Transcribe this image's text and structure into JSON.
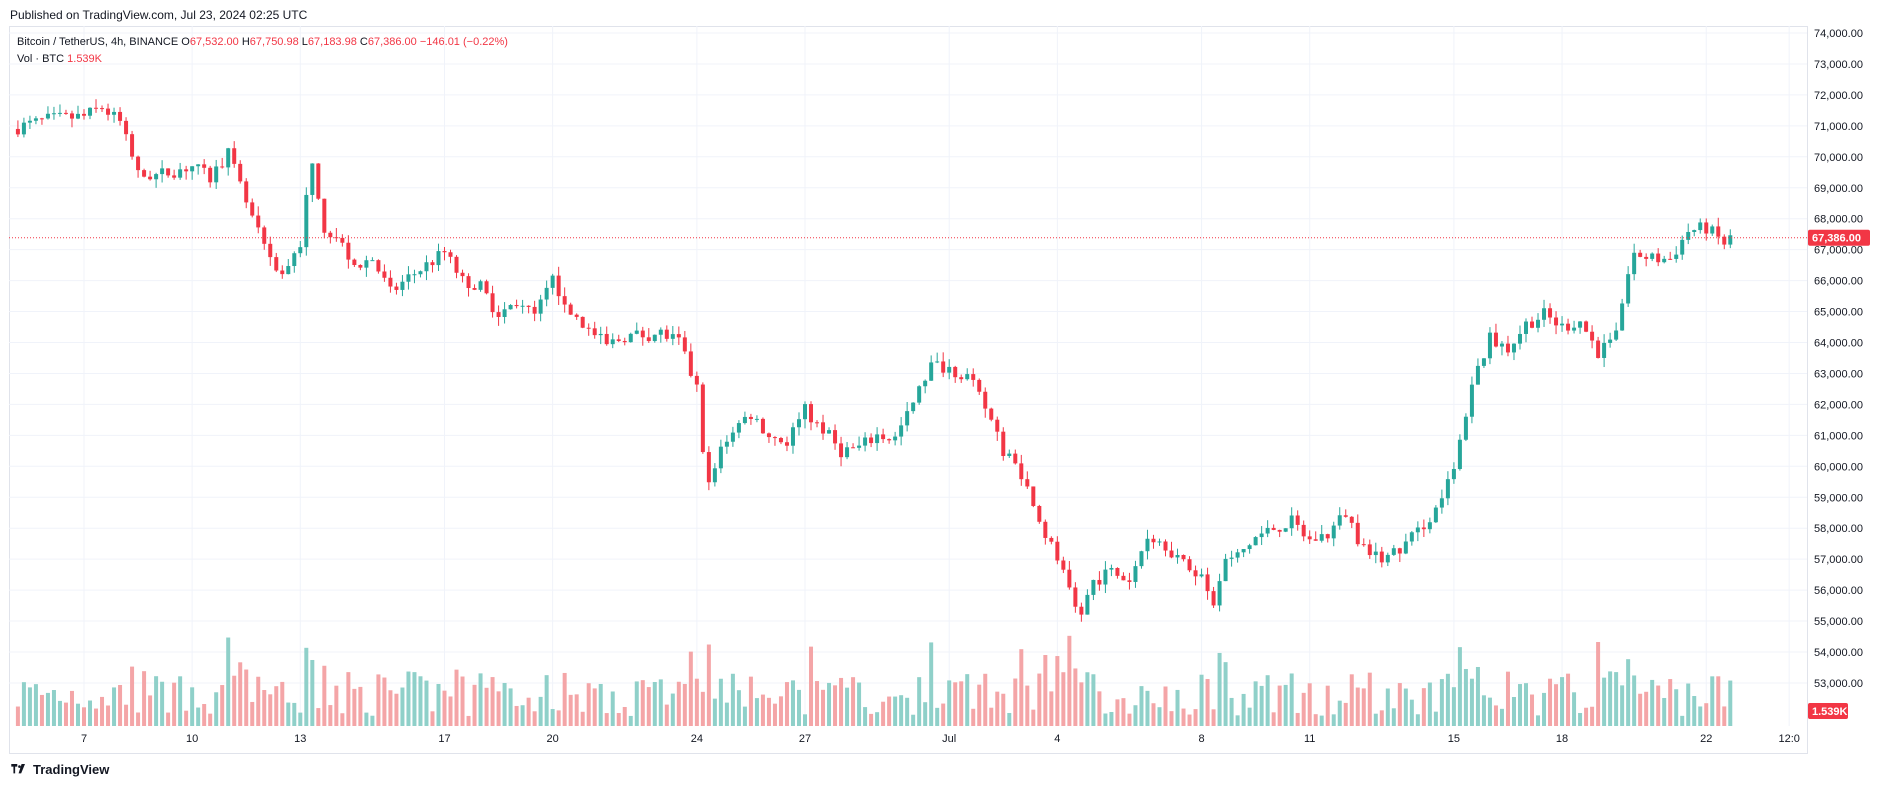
{
  "header": {
    "published": "Published on TradingView.com, Jul 23, 2024 02:25 UTC"
  },
  "legend": {
    "symbol": "Bitcoin / TetherUS, 4h, BINANCE",
    "o_label": "O",
    "o_value": "67,532.00",
    "h_label": "H",
    "h_value": "67,750.98",
    "l_label": "L",
    "l_value": "67,183.98",
    "c_label": "C",
    "c_value": "67,386.00",
    "change": "−146.01 (−0.22%)",
    "vol_label": "Vol · BTC",
    "vol_value": "1.539K"
  },
  "footer": {
    "brand": "TradingView"
  },
  "colors": {
    "up": "#26a69a",
    "down": "#f23645",
    "vol_up": "#8fd0c9",
    "vol_down": "#f4a5a7",
    "grid": "#f0f3fa",
    "text": "#131722"
  },
  "chart_data": {
    "type": "candlestick",
    "title": "Bitcoin / TetherUS, 4h, BINANCE",
    "ylim": [
      52000,
      74000
    ],
    "y_ticks": [
      "74,000.00",
      "73,000.00",
      "72,000.00",
      "71,000.00",
      "70,000.00",
      "69,000.00",
      "68,000.00",
      "67,000.00",
      "66,000.00",
      "65,000.00",
      "64,000.00",
      "63,000.00",
      "62,000.00",
      "61,000.00",
      "60,000.00",
      "59,000.00",
      "58,000.00",
      "57,000.00",
      "56,000.00",
      "55,000.00",
      "54,000.00",
      "53,000.00"
    ],
    "y_tick_values": [
      74000,
      73000,
      72000,
      71000,
      70000,
      69000,
      68000,
      67000,
      66000,
      65000,
      64000,
      63000,
      62000,
      61000,
      60000,
      59000,
      58000,
      57000,
      56000,
      55000,
      54000,
      53000
    ],
    "x_ticks": [
      {
        "label": "7",
        "day": 0
      },
      {
        "label": "10",
        "day": 3
      },
      {
        "label": "13",
        "day": 6
      },
      {
        "label": "17",
        "day": 10
      },
      {
        "label": "20",
        "day": 13
      },
      {
        "label": "24",
        "day": 17
      },
      {
        "label": "27",
        "day": 20
      },
      {
        "label": "Jul",
        "day": 24
      },
      {
        "label": "4",
        "day": 27
      },
      {
        "label": "8",
        "day": 31
      },
      {
        "label": "11",
        "day": 34
      },
      {
        "label": "15",
        "day": 38
      },
      {
        "label": "18",
        "day": 41
      },
      {
        "label": "22",
        "day": 45
      },
      {
        "label": "12:0",
        "day": 47.3
      }
    ],
    "x_start": "Jun 7",
    "x_end": "Jul 23",
    "last_price": "67,386.00",
    "last_price_value": 67386,
    "last_volume": "1.539K",
    "close_anchors": [
      [
        -2,
        70900
      ],
      [
        -1,
        71200
      ],
      [
        0,
        71300
      ],
      [
        0.5,
        71600
      ],
      [
        1,
        71100
      ],
      [
        1.5,
        69400
      ],
      [
        2,
        69400
      ],
      [
        3,
        69700
      ],
      [
        3.5,
        69300
      ],
      [
        4,
        70100
      ],
      [
        4.5,
        68500
      ],
      [
        5,
        67000
      ],
      [
        5.5,
        66200
      ],
      [
        6,
        67200
      ],
      [
        6.3,
        69800
      ],
      [
        6.6,
        67800
      ],
      [
        7,
        67400
      ],
      [
        7.5,
        66500
      ],
      [
        8,
        66700
      ],
      [
        8.5,
        65600
      ],
      [
        9,
        66100
      ],
      [
        10,
        66900
      ],
      [
        10.5,
        66000
      ],
      [
        11,
        65800
      ],
      [
        11.5,
        64900
      ],
      [
        12,
        65300
      ],
      [
        12.5,
        64800
      ],
      [
        13,
        66000
      ],
      [
        13.5,
        65000
      ],
      [
        14,
        64400
      ],
      [
        14.5,
        63900
      ],
      [
        15,
        64200
      ],
      [
        16,
        64300
      ],
      [
        16.5,
        64000
      ],
      [
        17,
        62500
      ],
      [
        17.3,
        59200
      ],
      [
        17.6,
        60500
      ],
      [
        18,
        61200
      ],
      [
        18.5,
        61700
      ],
      [
        19,
        61000
      ],
      [
        19.5,
        60800
      ],
      [
        20,
        61800
      ],
      [
        20.5,
        61200
      ],
      [
        21,
        60500
      ],
      [
        21.5,
        60600
      ],
      [
        22,
        61000
      ],
      [
        22.5,
        60900
      ],
      [
        23,
        62000
      ],
      [
        23.5,
        63300
      ],
      [
        24,
        63200
      ],
      [
        24.5,
        62900
      ],
      [
        25,
        61900
      ],
      [
        25.5,
        60500
      ],
      [
        26,
        59800
      ],
      [
        26.5,
        58200
      ],
      [
        27,
        57000
      ],
      [
        27.3,
        56100
      ],
      [
        27.6,
        55000
      ],
      [
        28,
        56300
      ],
      [
        28.5,
        56600
      ],
      [
        29,
        56300
      ],
      [
        29.5,
        57800
      ],
      [
        30,
        57500
      ],
      [
        30.5,
        56800
      ],
      [
        31,
        56500
      ],
      [
        31.3,
        55400
      ],
      [
        31.6,
        56800
      ],
      [
        32,
        57100
      ],
      [
        32.5,
        57700
      ],
      [
        33,
        58000
      ],
      [
        33.5,
        58200
      ],
      [
        34,
        57600
      ],
      [
        34.5,
        57800
      ],
      [
        35,
        58500
      ],
      [
        35.5,
        57300
      ],
      [
        36,
        57000
      ],
      [
        36.5,
        57300
      ],
      [
        37,
        57900
      ],
      [
        37.5,
        58600
      ],
      [
        38,
        59800
      ],
      [
        38.5,
        62700
      ],
      [
        39,
        64100
      ],
      [
        39.5,
        63800
      ],
      [
        40,
        64600
      ],
      [
        40.5,
        64900
      ],
      [
        41,
        64500
      ],
      [
        41.5,
        64700
      ],
      [
        42,
        63700
      ],
      [
        42.5,
        64500
      ],
      [
        43,
        66900
      ],
      [
        43.5,
        66700
      ],
      [
        44,
        66700
      ],
      [
        44.5,
        67600
      ],
      [
        45,
        67700
      ],
      [
        45.5,
        67200
      ],
      [
        45.7,
        67386
      ]
    ]
  }
}
